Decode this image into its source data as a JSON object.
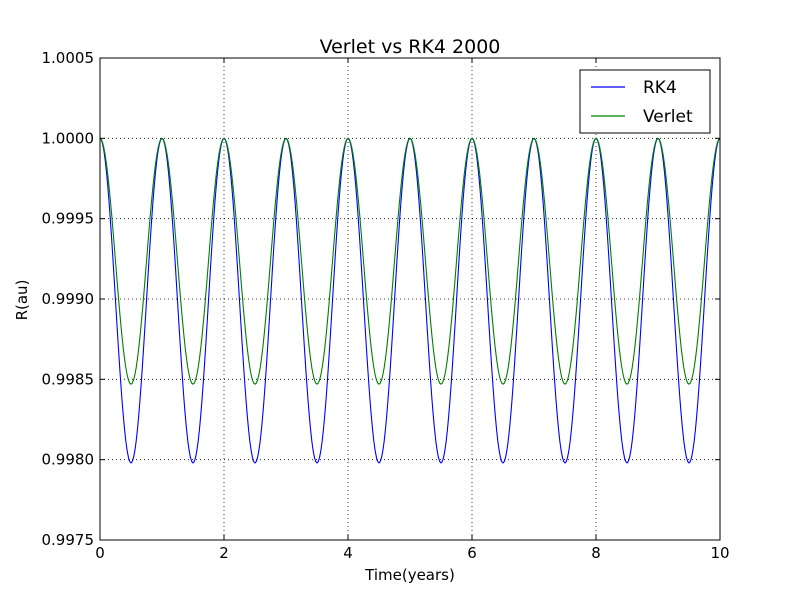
{
  "chart_data": {
    "type": "line",
    "title": "Verlet vs RK4  2000",
    "xlabel": "Time(years)",
    "ylabel": "R(au)",
    "xlim": [
      0,
      10
    ],
    "ylim": [
      0.9975,
      1.0005
    ],
    "x_ticks": [
      0,
      2,
      4,
      6,
      8,
      10
    ],
    "x_tick_labels": [
      "0",
      "2",
      "4",
      "6",
      "8",
      "10"
    ],
    "y_ticks": [
      0.9975,
      0.998,
      0.9985,
      0.999,
      0.9995,
      1.0,
      1.0005
    ],
    "y_tick_labels": [
      "0.9975",
      "0.9980",
      "0.9985",
      "0.9990",
      "0.9995",
      "1.0000",
      "1.0005"
    ],
    "grid": true,
    "legend_position": "top-right",
    "series": [
      {
        "name": "RK4",
        "color": "#0000ff",
        "x": [
          0,
          0.5,
          1,
          1.5,
          2,
          2.5,
          3,
          3.5,
          4,
          4.5,
          5,
          5.5,
          6,
          6.5,
          7,
          7.5,
          8,
          8.5,
          9,
          9.5,
          10
        ],
        "y": [
          1.0,
          0.99798,
          1.0,
          0.99798,
          1.0,
          0.99798,
          1.0,
          0.99798,
          1.0,
          0.99798,
          1.0,
          0.99798,
          1.0,
          0.99798,
          1.0,
          0.99798,
          1.0,
          0.99798,
          1.0,
          0.99798,
          1.0
        ]
      },
      {
        "name": "Verlet",
        "color": "#008000",
        "x": [
          0,
          0.5,
          1,
          1.5,
          2,
          2.5,
          3,
          3.5,
          4,
          4.5,
          5,
          5.5,
          6,
          6.5,
          7,
          7.5,
          8,
          8.5,
          9,
          9.5,
          10
        ],
        "y": [
          1.0,
          0.99847,
          1.0,
          0.99847,
          1.0,
          0.99847,
          1.0,
          0.99847,
          1.0,
          0.99847,
          1.0,
          0.99847,
          1.0,
          0.99847,
          1.0,
          0.99847,
          1.0,
          0.99847,
          1.0,
          0.99847,
          1.0
        ]
      }
    ]
  }
}
